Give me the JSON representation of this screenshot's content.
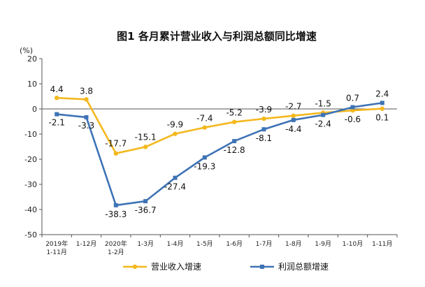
{
  "chart_data": {
    "type": "line",
    "title": "图1 各月累计营业收入与利润总额同比增速",
    "ylabel": "(%)",
    "ylim": [
      -50,
      20
    ],
    "yticks": [
      20,
      10,
      0,
      -10,
      -20,
      -30,
      -40,
      -50
    ],
    "grid": false,
    "legend_position": "bottom",
    "categories": [
      [
        "2019年",
        "1-11月"
      ],
      [
        "1-12月"
      ],
      [
        "2020年",
        "1-2月"
      ],
      [
        "1-3月"
      ],
      [
        "1-4月"
      ],
      [
        "1-5月"
      ],
      [
        "1-6月"
      ],
      [
        "1-7月"
      ],
      [
        "1-8月"
      ],
      [
        "1-9月"
      ],
      [
        "1-10月"
      ],
      [
        "1-11月"
      ]
    ],
    "series": [
      {
        "name": "营业收入增速",
        "color": "#F4B81E",
        "marker": "circle",
        "values": [
          4.4,
          3.8,
          -17.7,
          -15.1,
          -9.9,
          -7.4,
          -5.2,
          -3.9,
          -2.7,
          -1.5,
          -0.6,
          0.1
        ]
      },
      {
        "name": "利润总额增速",
        "color": "#3E73B5",
        "marker": "square",
        "values": [
          -2.1,
          -3.3,
          -38.3,
          -36.7,
          -27.4,
          -19.3,
          -12.8,
          -8.1,
          -4.4,
          -2.4,
          0.7,
          2.4
        ]
      }
    ],
    "data_labels": {
      "revenue": [
        "4.4",
        "3.8",
        "-17.7",
        "-15.1",
        "-9.9",
        "-7.4",
        "-5.2",
        "-3.9",
        "-2.7",
        "-1.5",
        "-0.6",
        "0.1"
      ],
      "profit": [
        "-2.1",
        "-3.3",
        "-38.3",
        "-36.7",
        "-27.4",
        "-19.3",
        "-12.8",
        "-8.1",
        "-4.4",
        "-2.4",
        "0.7",
        "2.4"
      ]
    }
  }
}
